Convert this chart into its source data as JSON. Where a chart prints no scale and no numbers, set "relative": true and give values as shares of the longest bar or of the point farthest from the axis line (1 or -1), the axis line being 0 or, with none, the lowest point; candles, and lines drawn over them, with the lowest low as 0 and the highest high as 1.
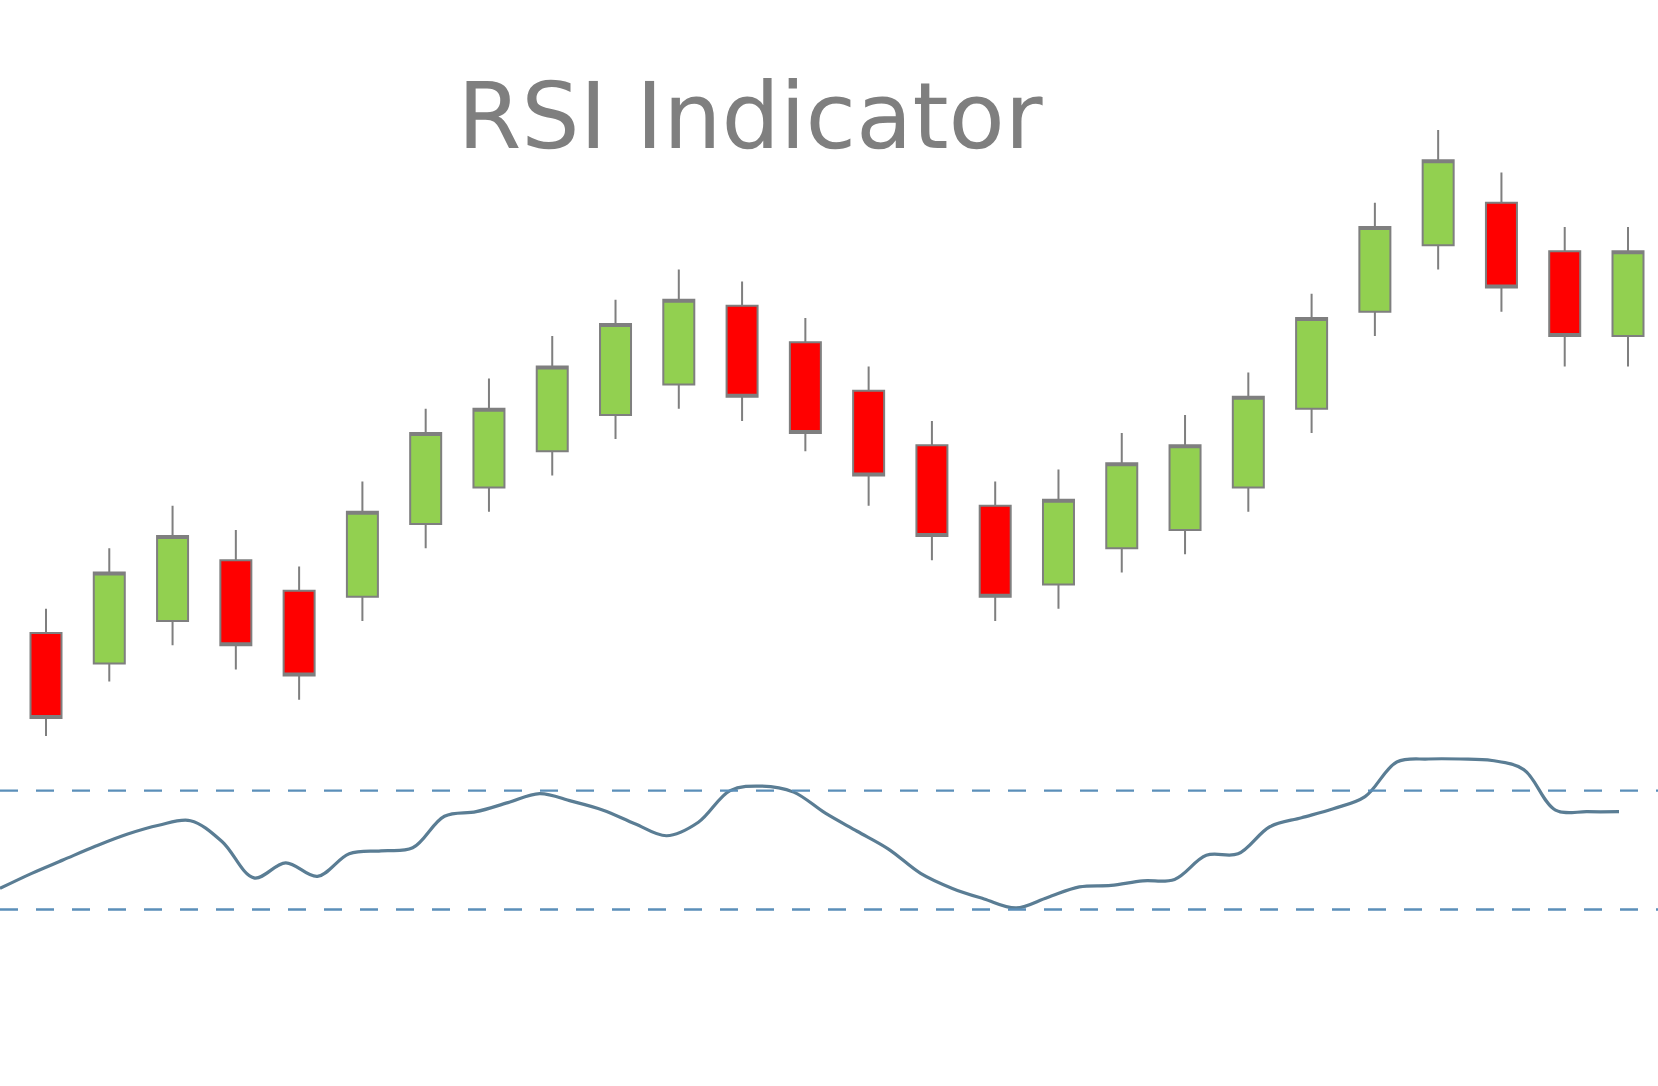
{
  "chart_data": [
    {
      "type": "candlestick",
      "title": "RSI Indicator",
      "relative": true,
      "tick_labels": false,
      "categories": [
        null,
        null,
        null,
        null,
        null,
        null,
        null,
        null,
        null,
        null,
        null,
        null,
        null,
        null,
        null,
        null,
        null,
        null,
        null,
        null,
        null,
        null,
        null,
        null,
        null,
        null
      ],
      "ohlc": [
        [
          0.17,
          0.21,
          0,
          0.03
        ],
        [
          0.12,
          0.31,
          0.09,
          0.27
        ],
        [
          0.19,
          0.38,
          0.15,
          0.33
        ],
        [
          0.29,
          0.34,
          0.11,
          0.15
        ],
        [
          0.24,
          0.28,
          0.06,
          0.1
        ],
        [
          0.23,
          0.42,
          0.19,
          0.37
        ],
        [
          0.35,
          0.54,
          0.31,
          0.5
        ],
        [
          0.41,
          0.59,
          0.37,
          0.54
        ],
        [
          0.47,
          0.66,
          0.43,
          0.61
        ],
        [
          0.53,
          0.72,
          0.49,
          0.68
        ],
        [
          0.58,
          0.77,
          0.54,
          0.72
        ],
        [
          0.71,
          0.75,
          0.52,
          0.56
        ],
        [
          0.65,
          0.69,
          0.47,
          0.5
        ],
        [
          0.57,
          0.61,
          0.38,
          0.43
        ],
        [
          0.48,
          0.52,
          0.29,
          0.33
        ],
        [
          0.38,
          0.42,
          0.19,
          0.23
        ],
        [
          0.25,
          0.44,
          0.21,
          0.39
        ],
        [
          0.31,
          0.5,
          0.27,
          0.45
        ],
        [
          0.34,
          0.53,
          0.3,
          0.48
        ],
        [
          0.41,
          0.6,
          0.37,
          0.56
        ],
        [
          0.54,
          0.73,
          0.5,
          0.69
        ],
        [
          0.7,
          0.88,
          0.66,
          0.84
        ],
        [
          0.81,
          1,
          0.77,
          0.95
        ],
        [
          0.88,
          0.93,
          0.7,
          0.74
        ],
        [
          0.8,
          0.84,
          0.61,
          0.66
        ],
        [
          0.66,
          0.84,
          0.61,
          0.8
        ]
      ],
      "colors": [
        "#ff0000",
        "#92d050",
        "#92d050",
        "#ff0000",
        "#ff0000",
        "#92d050",
        "#92d050",
        "#92d050",
        "#92d050",
        "#92d050",
        "#92d050",
        "#ff0000",
        "#ff0000",
        "#ff0000",
        "#ff0000",
        "#ff0000",
        "#92d050",
        "#92d050",
        "#92d050",
        "#92d050",
        "#92d050",
        "#92d050",
        "#92d050",
        "#ff0000",
        "#ff0000",
        "#92d050"
      ]
    },
    {
      "type": "line",
      "relative": true,
      "tick_labels": false,
      "line_style": "solid",
      "categories": [
        null,
        null,
        null,
        null,
        null,
        null,
        null,
        null,
        null,
        null,
        null,
        null,
        null,
        null,
        null,
        null,
        null,
        null,
        null,
        null,
        null,
        null,
        null,
        null,
        null,
        null,
        null,
        null,
        null,
        null,
        null,
        null,
        null,
        null,
        null,
        null,
        null,
        null,
        null,
        null,
        null,
        null,
        null,
        null,
        null,
        null,
        null,
        null,
        null,
        null,
        null,
        null
      ],
      "series": [
        {
          "color": "#5a7d94",
          "values": [
            0.14,
            0.24,
            0.33,
            0.42,
            0.5,
            0.56,
            0.59,
            0.45,
            0.21,
            0.31,
            0.22,
            0.37,
            0.39,
            0.41,
            0.62,
            0.65,
            0.71,
            0.77,
            0.72,
            0.66,
            0.57,
            0.49,
            0.58,
            0.79,
            0.82,
            0.78,
            0.64,
            0.52,
            0.4,
            0.24,
            0.14,
            0.07,
            0.01,
            0.08,
            0.15,
            0.16,
            0.19,
            0.2,
            0.36,
            0.37,
            0.55,
            0.61,
            0.67,
            0.75,
            0.98,
            1,
            1,
            0.99,
            0.93,
            0.66,
            0.65,
            0.65
          ]
        }
      ],
      "ref_lines": [
        {
          "axis": "y",
          "value": 0.79,
          "color": "#5b8fb9",
          "line_style": "dashed"
        },
        {
          "axis": "y",
          "value": 0,
          "color": "#5b8fb9",
          "line_style": "dashed"
        }
      ]
    }
  ]
}
